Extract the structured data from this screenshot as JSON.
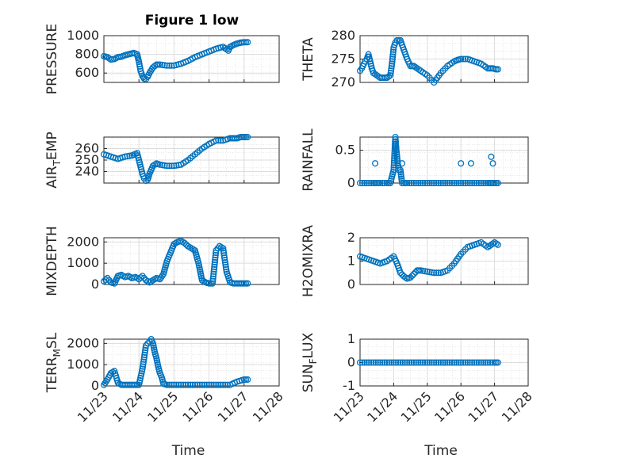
{
  "figure": {
    "title": "Figure 1 low",
    "xlabel": "Time"
  },
  "chart_data": [
    {
      "type": "scatter",
      "ylabel": "PRESSURE",
      "ylim": [
        500,
        1000
      ],
      "yticks": [
        "600",
        "800",
        "1000"
      ],
      "ytick_values": [
        600,
        800,
        1000
      ],
      "xticks": [
        "11/23",
        "11/24",
        "11/25",
        "11/26",
        "11/27",
        "11/28"
      ],
      "show_xticklabels": false,
      "grid": true,
      "marker": "circle",
      "color": "#0072BD",
      "series": [
        {
          "x": [
            0,
            0.1,
            0.2,
            0.3,
            0.4,
            0.5,
            0.6,
            0.7,
            0.85,
            0.95,
            1.0,
            1.05,
            1.1,
            1.15,
            1.2,
            1.25,
            1.3,
            1.4,
            1.5,
            1.6,
            1.8,
            2.0,
            2.2,
            2.4,
            2.6,
            2.8,
            3.0,
            3.2,
            3.4,
            3.55,
            3.6,
            3.7,
            3.8,
            3.9,
            4.0,
            4.1
          ],
          "y": [
            780,
            770,
            745,
            750,
            770,
            775,
            790,
            800,
            815,
            800,
            720,
            620,
            570,
            540,
            535,
            560,
            600,
            660,
            690,
            690,
            680,
            680,
            700,
            730,
            770,
            800,
            830,
            860,
            880,
            840,
            880,
            900,
            915,
            925,
            930,
            930
          ]
        }
      ]
    },
    {
      "type": "scatter",
      "ylabel": "THETA",
      "ylim": [
        270,
        280
      ],
      "yticks": [
        "270",
        "275",
        "280"
      ],
      "ytick_values": [
        270,
        275,
        280
      ],
      "xticks": [
        "11/23",
        "11/24",
        "11/25",
        "11/26",
        "11/27",
        "11/28"
      ],
      "show_xticklabels": false,
      "grid": true,
      "marker": "circle",
      "color": "#0072BD",
      "series": [
        {
          "x": [
            0,
            0.05,
            0.15,
            0.2,
            0.25,
            0.3,
            0.35,
            0.4,
            0.5,
            0.6,
            0.7,
            0.8,
            0.9,
            0.95,
            1.0,
            1.05,
            1.1,
            1.2,
            1.3,
            1.4,
            1.5,
            1.6,
            1.7,
            1.8,
            2.0,
            2.2,
            2.4,
            2.6,
            2.8,
            2.9,
            3.0,
            3.2,
            3.4,
            3.6,
            3.8,
            3.95,
            4.05,
            4.1
          ],
          "y": [
            272.5,
            273,
            274.5,
            275,
            276,
            274.5,
            273,
            272,
            271.5,
            271,
            271,
            271,
            271.5,
            274,
            277.5,
            278.5,
            279,
            279,
            277,
            275,
            273.5,
            273.5,
            273,
            272.5,
            271.5,
            270,
            272,
            273.5,
            274.5,
            274.8,
            275,
            275,
            274.5,
            274,
            273,
            273,
            272.8,
            272.8
          ]
        }
      ]
    },
    {
      "type": "scatter",
      "ylabel": "AIR_TEMP",
      "ylim": [
        230,
        270
      ],
      "yticks": [
        "240",
        "250",
        "260"
      ],
      "ytick_values": [
        240,
        250,
        260
      ],
      "xticks": [
        "11/23",
        "11/24",
        "11/25",
        "11/26",
        "11/27",
        "11/28"
      ],
      "show_xticklabels": false,
      "grid": true,
      "marker": "circle",
      "color": "#0072BD",
      "series": [
        {
          "x": [
            0,
            0.2,
            0.4,
            0.6,
            0.8,
            0.95,
            1.0,
            1.05,
            1.1,
            1.15,
            1.2,
            1.25,
            1.3,
            1.4,
            1.5,
            1.6,
            1.8,
            2.0,
            2.2,
            2.4,
            2.6,
            2.8,
            3.0,
            3.2,
            3.4,
            3.6,
            3.7,
            3.8,
            3.9,
            4.0,
            4.1
          ],
          "y": [
            255,
            253,
            251,
            253,
            254,
            256,
            250,
            244,
            238,
            234,
            232,
            233,
            238,
            245,
            247,
            246,
            245,
            245,
            246,
            250,
            255,
            260,
            264,
            267,
            267,
            269,
            269,
            269,
            270,
            270,
            270
          ]
        }
      ]
    },
    {
      "type": "scatter",
      "ylabel": "RAINFALL",
      "ylim": [
        0,
        0.7
      ],
      "yticks": [
        "0",
        "0.5"
      ],
      "ytick_values": [
        0,
        0.5
      ],
      "xticks": [
        "11/23",
        "11/24",
        "11/25",
        "11/26",
        "11/27",
        "11/28"
      ],
      "show_xticklabels": false,
      "grid": true,
      "marker": "circle",
      "color": "#0072BD",
      "series": [
        {
          "x": [
            0,
            0.2,
            0.4,
            0.5,
            0.6,
            0.8,
            0.9,
            1.0,
            1.05,
            1.08,
            1.12,
            1.15,
            1.2,
            1.25,
            1.4,
            1.6,
            1.8,
            2.0,
            2.2,
            2.4,
            2.6,
            2.8,
            3.0,
            3.2,
            3.4,
            3.6,
            3.8,
            3.9,
            4.0,
            4.1
          ],
          "y": [
            0,
            0,
            0,
            0,
            0,
            0,
            0,
            0.2,
            0.7,
            0.5,
            0.3,
            0.2,
            0.2,
            0,
            0,
            0,
            0,
            0,
            0,
            0,
            0,
            0,
            0,
            0,
            0,
            0,
            0,
            0,
            0,
            0
          ]
        },
        {
          "x": [
            0.45,
            1.25,
            3.0,
            3.3,
            3.9,
            3.95
          ],
          "y": [
            0.3,
            0.3,
            0.3,
            0.3,
            0.4,
            0.3
          ]
        }
      ]
    },
    {
      "type": "scatter",
      "ylabel": "MIXDEPTH",
      "ylim": [
        0,
        2200
      ],
      "yticks": [
        "0",
        "1000",
        "2000"
      ],
      "ytick_values": [
        0,
        1000,
        2000
      ],
      "xticks": [
        "11/23",
        "11/24",
        "11/25",
        "11/26",
        "11/27",
        "11/28"
      ],
      "show_xticklabels": false,
      "grid": true,
      "marker": "circle",
      "color": "#0072BD",
      "series": [
        {
          "x": [
            0,
            0.1,
            0.2,
            0.3,
            0.4,
            0.5,
            0.6,
            0.7,
            0.8,
            0.9,
            1.0,
            1.1,
            1.2,
            1.3,
            1.4,
            1.5,
            1.6,
            1.7,
            1.8,
            1.9,
            2.0,
            2.1,
            2.2,
            2.3,
            2.4,
            2.5,
            2.6,
            2.7,
            2.8,
            2.9,
            3.0,
            3.05,
            3.1,
            3.2,
            3.3,
            3.4,
            3.5,
            3.6,
            3.7,
            3.8,
            3.9,
            4.0,
            4.1
          ],
          "y": [
            150,
            300,
            100,
            50,
            400,
            450,
            350,
            400,
            300,
            350,
            250,
            400,
            200,
            100,
            200,
            300,
            250,
            500,
            1100,
            1500,
            1900,
            2000,
            2050,
            1950,
            1800,
            1700,
            1600,
            1000,
            200,
            100,
            50,
            50,
            50,
            1600,
            1800,
            1700,
            600,
            100,
            50,
            50,
            50,
            50,
            50
          ]
        }
      ]
    },
    {
      "type": "scatter",
      "ylabel": "H2OMIXRA",
      "ylim": [
        0,
        2
      ],
      "yticks": [
        "0",
        "1",
        "2"
      ],
      "ytick_values": [
        0,
        1,
        2
      ],
      "xticks": [
        "11/23",
        "11/24",
        "11/25",
        "11/26",
        "11/27",
        "11/28"
      ],
      "show_xticklabels": false,
      "grid": true,
      "marker": "circle",
      "color": "#0072BD",
      "series": [
        {
          "x": [
            0,
            0.2,
            0.4,
            0.6,
            0.8,
            1.0,
            1.1,
            1.2,
            1.3,
            1.4,
            1.5,
            1.6,
            1.7,
            1.8,
            2.0,
            2.2,
            2.4,
            2.6,
            2.8,
            3.0,
            3.2,
            3.4,
            3.6,
            3.8,
            3.9,
            4.0,
            4.1
          ],
          "y": [
            1.2,
            1.1,
            1.0,
            0.9,
            1.0,
            1.2,
            0.9,
            0.5,
            0.35,
            0.25,
            0.3,
            0.45,
            0.6,
            0.6,
            0.55,
            0.5,
            0.5,
            0.6,
            0.9,
            1.3,
            1.6,
            1.7,
            1.8,
            1.6,
            1.7,
            1.8,
            1.7
          ]
        }
      ]
    },
    {
      "type": "scatter",
      "ylabel": "TERR_MSL",
      "ylim": [
        0,
        2200
      ],
      "yticks": [
        "0",
        "1000",
        "2000"
      ],
      "ytick_values": [
        0,
        1000,
        2000
      ],
      "xticks": [
        "11/23",
        "11/24",
        "11/25",
        "11/26",
        "11/27",
        "11/28"
      ],
      "show_xticklabels": true,
      "grid": true,
      "marker": "circle",
      "color": "#0072BD",
      "series": [
        {
          "x": [
            0,
            0.1,
            0.2,
            0.3,
            0.4,
            0.5,
            0.6,
            0.7,
            0.8,
            0.9,
            1.0,
            1.1,
            1.2,
            1.25,
            1.3,
            1.35,
            1.4,
            1.45,
            1.5,
            1.55,
            1.6,
            1.65,
            1.7,
            1.8,
            2.0,
            2.2,
            2.4,
            2.6,
            2.8,
            3.0,
            3.2,
            3.4,
            3.6,
            3.8,
            4.0,
            4.1
          ],
          "y": [
            50,
            300,
            600,
            700,
            150,
            50,
            50,
            50,
            50,
            50,
            50,
            800,
            1900,
            2000,
            2100,
            2200,
            2000,
            1600,
            1300,
            900,
            600,
            400,
            100,
            50,
            50,
            50,
            50,
            50,
            50,
            50,
            50,
            50,
            50,
            200,
            300,
            300
          ]
        }
      ]
    },
    {
      "type": "scatter",
      "ylabel": "SUN_FLUX",
      "ylim": [
        -1,
        1
      ],
      "yticks": [
        "-1",
        "0",
        "1"
      ],
      "ytick_values": [
        -1,
        0,
        1
      ],
      "xticks": [
        "11/23",
        "11/24",
        "11/25",
        "11/26",
        "11/27",
        "11/28"
      ],
      "show_xticklabels": true,
      "grid": true,
      "marker": "circle",
      "color": "#0072BD",
      "series": [
        {
          "x": [
            0,
            0.2,
            0.4,
            0.6,
            0.8,
            1.0,
            1.2,
            1.4,
            1.6,
            1.8,
            2.0,
            2.2,
            2.4,
            2.6,
            2.8,
            3.0,
            3.2,
            3.4,
            3.6,
            3.8,
            4.0,
            4.1
          ],
          "y": [
            0,
            0,
            0,
            0,
            0,
            0,
            0,
            0,
            0,
            0,
            0,
            0,
            0,
            0,
            0,
            0,
            0,
            0,
            0,
            0,
            0,
            0
          ]
        }
      ]
    }
  ]
}
